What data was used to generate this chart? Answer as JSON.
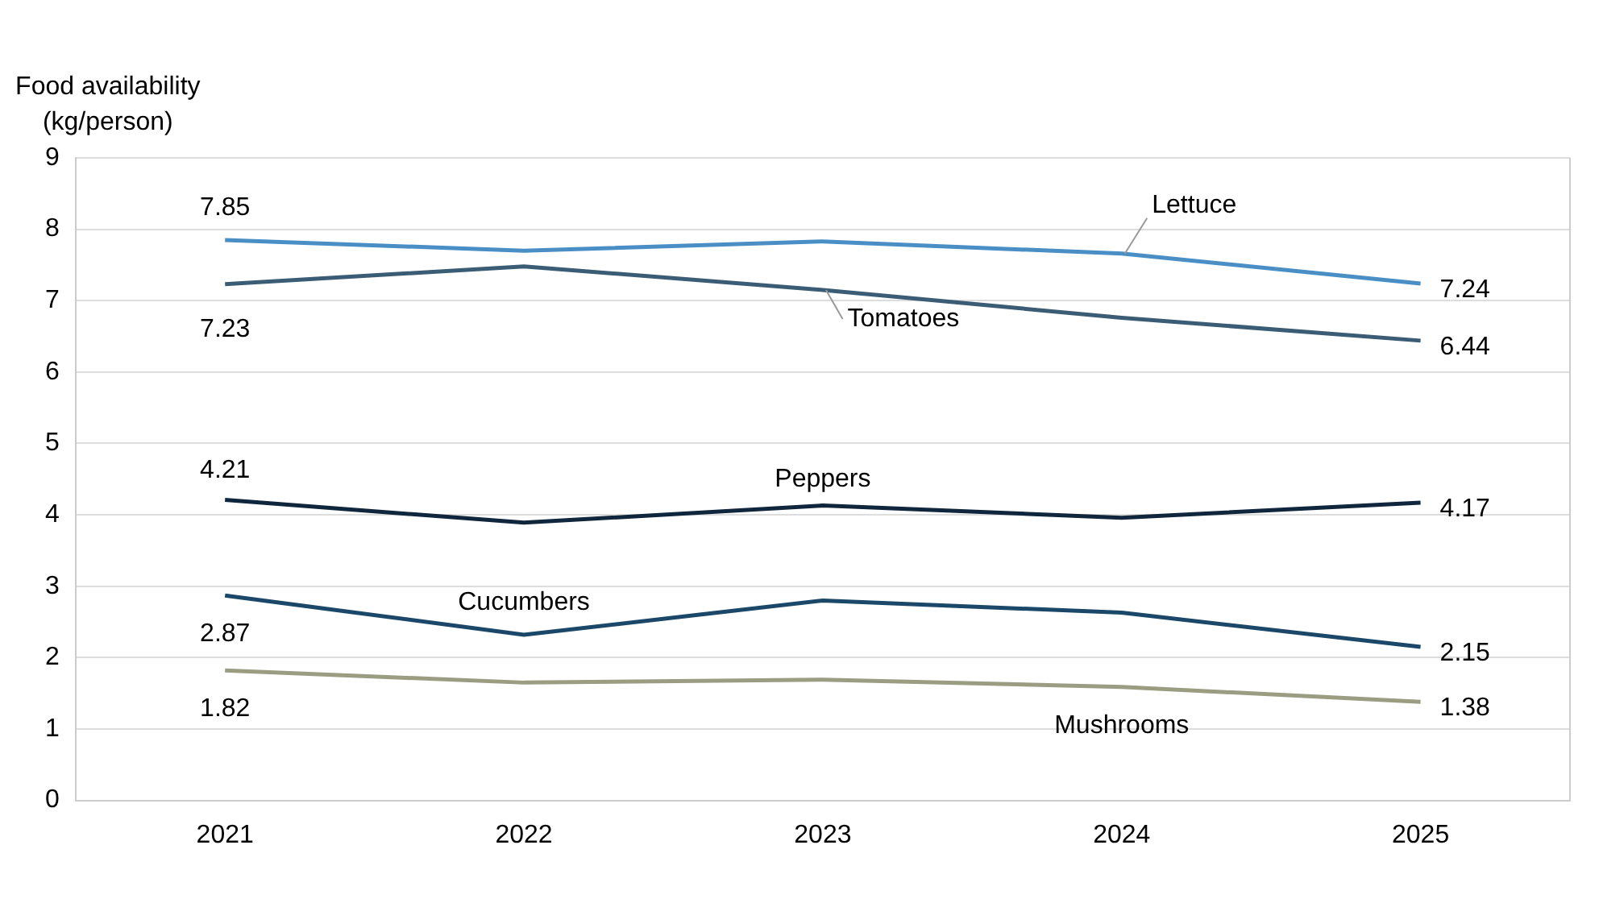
{
  "chart_data": {
    "type": "line",
    "ylabel": "Food availability (kg/person)",
    "categories": [
      "2021",
      "2022",
      "2023",
      "2024",
      "2025"
    ],
    "series": [
      {
        "name": "Lettuce",
        "color": "#4a8ec6",
        "values": [
          7.85,
          7.7,
          7.83,
          7.66,
          7.24
        ],
        "value_labels": [
          "7.85",
          null,
          null,
          null,
          "7.24"
        ]
      },
      {
        "name": "Tomatoes",
        "color": "#3b5c75",
        "values": [
          7.23,
          7.48,
          7.15,
          6.76,
          6.44
        ],
        "value_labels": [
          "7.23",
          null,
          null,
          null,
          "6.44"
        ]
      },
      {
        "name": "Peppers",
        "color": "#10263c",
        "values": [
          4.21,
          3.89,
          4.13,
          3.96,
          4.17
        ],
        "value_labels": [
          "4.21",
          null,
          null,
          null,
          "4.17"
        ]
      },
      {
        "name": "Cucumbers",
        "color": "#1b4868",
        "values": [
          2.87,
          2.32,
          2.8,
          2.63,
          2.15
        ],
        "value_labels": [
          "2.87",
          null,
          null,
          null,
          "2.15"
        ]
      },
      {
        "name": "Mushrooms",
        "color": "#9a9d82",
        "values": [
          1.82,
          1.65,
          1.69,
          1.59,
          1.38
        ],
        "value_labels": [
          "1.82",
          null,
          null,
          null,
          "1.38"
        ]
      }
    ],
    "ylim": [
      0,
      9
    ],
    "yticks": [
      0,
      1,
      2,
      3,
      4,
      5,
      6,
      7,
      8,
      9
    ],
    "grid": "y",
    "legend": false,
    "marker": "none",
    "line_style": "solid"
  }
}
